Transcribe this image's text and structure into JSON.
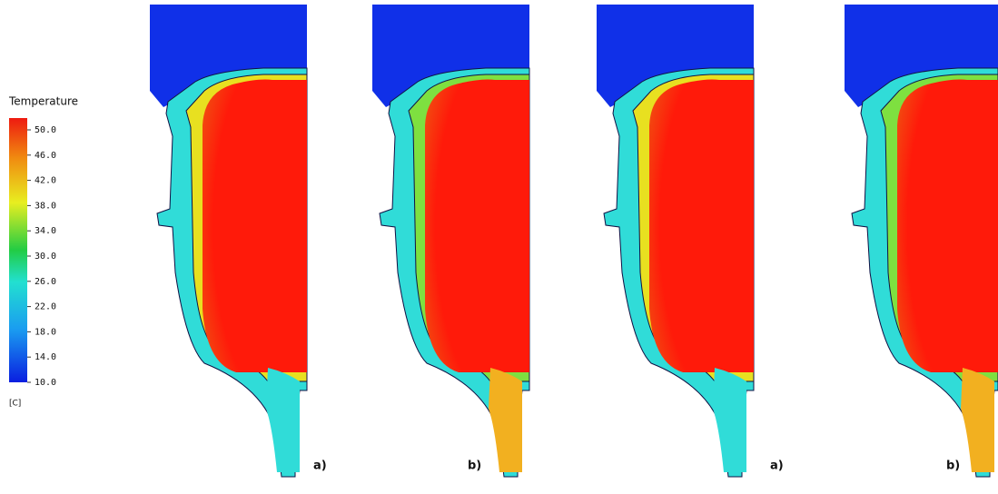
{
  "colorbar": {
    "title": "Temperature",
    "unit": "[C]",
    "ticks": [
      {
        "value": 50,
        "label": "50.0"
      },
      {
        "value": 46,
        "label": "46.0"
      },
      {
        "value": 42,
        "label": "42.0"
      },
      {
        "value": 38,
        "label": "38.0"
      },
      {
        "value": 34,
        "label": "34.0"
      },
      {
        "value": 30,
        "label": "30.0"
      },
      {
        "value": 26,
        "label": "26.0"
      },
      {
        "value": 22,
        "label": "22.0"
      },
      {
        "value": 18,
        "label": "18.0"
      },
      {
        "value": 14,
        "label": "14.0"
      },
      {
        "value": 10,
        "label": "10.0"
      }
    ]
  },
  "panels": [
    {
      "label": "a)"
    },
    {
      "label": "b)"
    },
    {
      "label": "a)"
    },
    {
      "label": "b)"
    }
  ]
}
